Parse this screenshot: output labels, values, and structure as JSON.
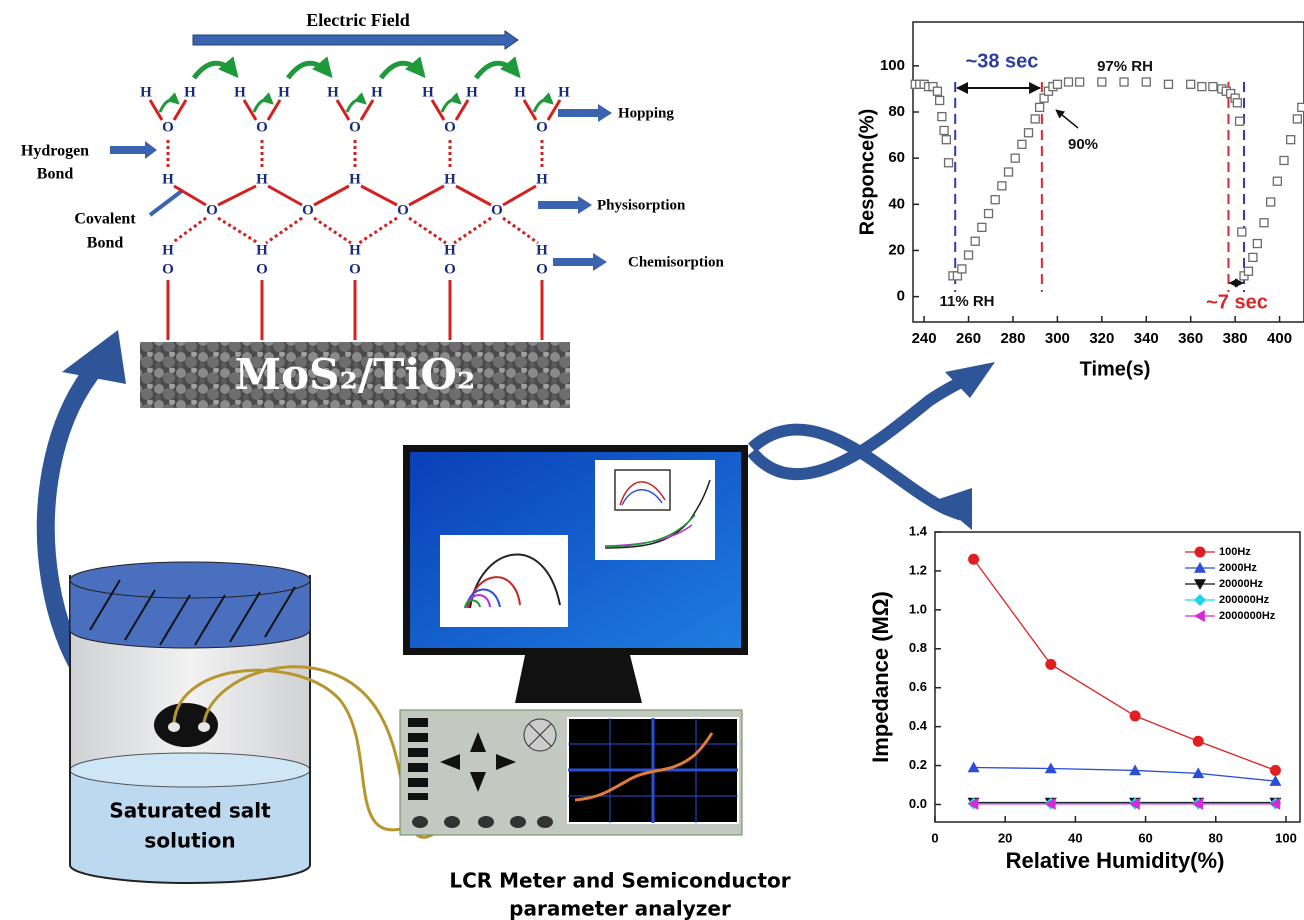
{
  "diagram": {
    "electric_field": "Electric Field",
    "atoms": {
      "H": "H",
      "O": "O"
    },
    "hopping": "Hopping",
    "physisorption": "Physisorption",
    "chemisorption": "Chemisorption",
    "hydrogen_bond": [
      "Hydrogen",
      "Bond"
    ],
    "covalent_bond": [
      "Covalent",
      "Bond"
    ],
    "material": "MoS₂/TiO₂",
    "solution": [
      "Saturated salt",
      "solution"
    ],
    "instrument": [
      "LCR Meter and Semiconductor",
      "parameter analyzer"
    ]
  },
  "chart_data": [
    {
      "type": "scatter",
      "xlabel": "Time(s)",
      "ylabel": "Responce(%)",
      "xlim": [
        235,
        411
      ],
      "ylim": [
        -11,
        119
      ],
      "xticks": [
        240,
        260,
        280,
        300,
        320,
        340,
        360,
        380,
        400
      ],
      "yticks": [
        0,
        20,
        40,
        60,
        80,
        100
      ],
      "x": [
        236,
        238,
        240,
        242,
        244,
        246,
        247,
        248,
        249,
        250,
        251,
        253,
        255,
        257,
        260,
        263,
        266,
        269,
        272,
        275,
        278,
        281,
        284,
        287,
        290,
        292,
        294,
        296,
        298,
        300,
        305,
        310,
        320,
        330,
        340,
        350,
        360,
        365,
        370,
        374,
        376,
        378,
        380,
        381,
        382,
        383,
        384,
        386,
        388,
        390,
        393,
        396,
        399,
        402,
        405,
        408,
        410
      ],
      "values": [
        92,
        92,
        92,
        91,
        91,
        89,
        85,
        78,
        72,
        68,
        58,
        9,
        9,
        12,
        18,
        24,
        30,
        36,
        42,
        48,
        54,
        60,
        66,
        71,
        77,
        82,
        86,
        89,
        91,
        92,
        93,
        93,
        93,
        93,
        93,
        92,
        92,
        91,
        91,
        90,
        89,
        88,
        86,
        84,
        76,
        28,
        9,
        11,
        17,
        23,
        32,
        41,
        50,
        59,
        68,
        77,
        82
      ],
      "color": "#6b6b6b",
      "markers": [
        {
          "x": 254,
          "color": "#2d3e9e"
        },
        {
          "x": 293,
          "color": "#d62a2a"
        },
        {
          "x": 377,
          "color": "#d62a2a"
        },
        {
          "x": 384,
          "color": "#2d3e9e"
        }
      ],
      "annotations": [
        {
          "text": "~38 sec",
          "color": "#2d3e9e"
        },
        {
          "text": "97% RH",
          "color": "#111111"
        },
        {
          "text": "90%",
          "color": "#111111"
        },
        {
          "text": "11% RH",
          "color": "#111111"
        },
        {
          "text": "~7 sec",
          "color": "#d62a2a"
        }
      ]
    },
    {
      "type": "line",
      "xlabel": "Relative Humidity(%)",
      "ylabel": "Impedance (MΩ)",
      "xlim": [
        0,
        104
      ],
      "ylim": [
        -0.09,
        1.4
      ],
      "xticks": [
        0,
        20,
        40,
        60,
        80,
        100
      ],
      "yticks": [
        {
          "value": 0,
          "label": "0.0"
        },
        0.2,
        0.4,
        0.6,
        0.8,
        {
          "value": 1,
          "label": "1.0"
        },
        1.2,
        1.4
      ],
      "x": [
        11,
        33,
        57,
        75,
        97
      ],
      "legend": "upper right",
      "series": [
        {
          "name": "100Hz",
          "color": "#e02020",
          "marker": "circle",
          "values": [
            1.26,
            0.72,
            0.455,
            0.325,
            0.175
          ]
        },
        {
          "name": "2000Hz",
          "color": "#2a4fd6",
          "marker": "triangle-up",
          "values": [
            0.19,
            0.185,
            0.175,
            0.16,
            0.12
          ]
        },
        {
          "name": "20000Hz",
          "color": "#111111",
          "marker": "triangle-down",
          "values": [
            0.01,
            0.01,
            0.01,
            0.01,
            0.01
          ]
        },
        {
          "name": "200000Hz",
          "color": "#19d6e6",
          "marker": "diamond",
          "values": [
            0.005,
            0.005,
            0.005,
            0.005,
            0.005
          ]
        },
        {
          "name": "2000000Hz",
          "color": "#d62ad6",
          "marker": "triangle-left",
          "values": [
            0.003,
            0.003,
            0.003,
            0.003,
            0.003
          ]
        }
      ]
    }
  ]
}
